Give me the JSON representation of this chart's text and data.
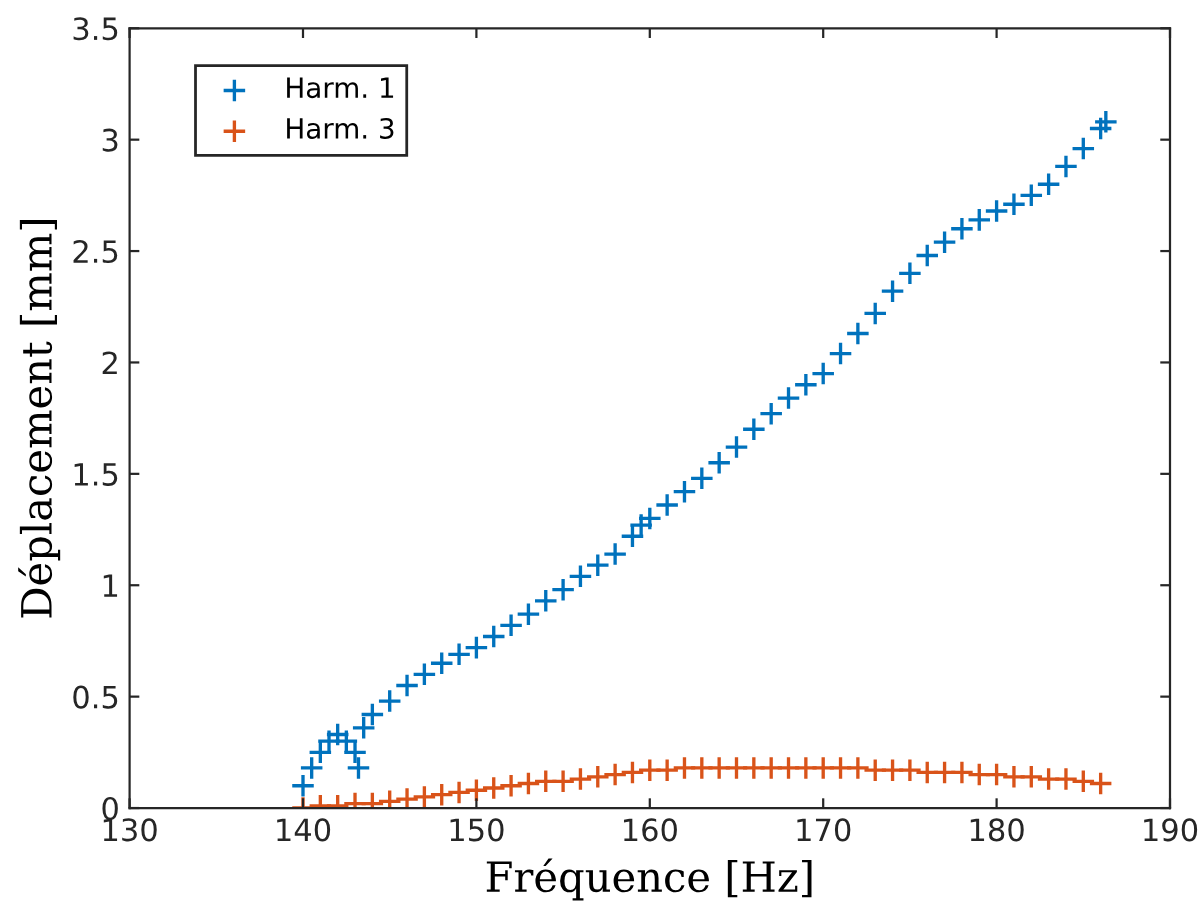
{
  "chart_data": {
    "type": "scatter",
    "xlabel": "Fréquence [Hz]",
    "ylabel": "Déplacement [mm]",
    "xlim": [
      130,
      190
    ],
    "xticks": [
      130,
      140,
      150,
      160,
      170,
      180,
      190
    ],
    "ylim": [
      0,
      3.5
    ],
    "yticks": [
      0,
      0.5,
      1,
      1.5,
      2,
      2.5,
      3,
      3.5
    ],
    "grid": false,
    "legend": "top left",
    "marker": "cross",
    "series": [
      {
        "name": "Harm. 1",
        "color": "#0072bd",
        "x": [
          140,
          140.5,
          141,
          141.5,
          142,
          142.5,
          143,
          143.2,
          143.5,
          144,
          145,
          146,
          147,
          148,
          149,
          150,
          151,
          152,
          153,
          154,
          155,
          156,
          157,
          158,
          159,
          159.5,
          160,
          161,
          162,
          163,
          164,
          165,
          166,
          167,
          168,
          169,
          170,
          171,
          172,
          173,
          174,
          175,
          176,
          177,
          178,
          179,
          180,
          181,
          182,
          183,
          184,
          185,
          186,
          186.3
        ],
        "values": [
          0.1,
          0.18,
          0.25,
          0.3,
          0.33,
          0.3,
          0.25,
          0.18,
          0.36,
          0.42,
          0.48,
          0.55,
          0.6,
          0.65,
          0.69,
          0.72,
          0.77,
          0.82,
          0.87,
          0.93,
          0.98,
          1.04,
          1.09,
          1.14,
          1.22,
          1.27,
          1.3,
          1.36,
          1.42,
          1.48,
          1.55,
          1.62,
          1.7,
          1.77,
          1.84,
          1.9,
          1.95,
          2.04,
          2.13,
          2.22,
          2.32,
          2.4,
          2.48,
          2.54,
          2.6,
          2.64,
          2.68,
          2.71,
          2.75,
          2.8,
          2.88,
          2.96,
          3.05,
          3.08
        ]
      },
      {
        "name": "Harm. 3",
        "color": "#d95319",
        "x": [
          140,
          141,
          142,
          143,
          144,
          145,
          146,
          147,
          148,
          149,
          150,
          151,
          152,
          153,
          154,
          155,
          156,
          157,
          158,
          159,
          160,
          161,
          162,
          163,
          164,
          165,
          166,
          167,
          168,
          169,
          170,
          171,
          172,
          173,
          174,
          175,
          176,
          177,
          178,
          179,
          180,
          181,
          182,
          183,
          184,
          185,
          186
        ],
        "values": [
          0.0,
          0.01,
          0.01,
          0.02,
          0.02,
          0.03,
          0.04,
          0.05,
          0.06,
          0.07,
          0.08,
          0.09,
          0.1,
          0.11,
          0.12,
          0.12,
          0.13,
          0.14,
          0.15,
          0.16,
          0.17,
          0.17,
          0.18,
          0.18,
          0.18,
          0.18,
          0.18,
          0.18,
          0.18,
          0.18,
          0.18,
          0.18,
          0.18,
          0.17,
          0.17,
          0.17,
          0.16,
          0.16,
          0.16,
          0.15,
          0.15,
          0.14,
          0.14,
          0.13,
          0.13,
          0.12,
          0.11
        ]
      }
    ]
  }
}
